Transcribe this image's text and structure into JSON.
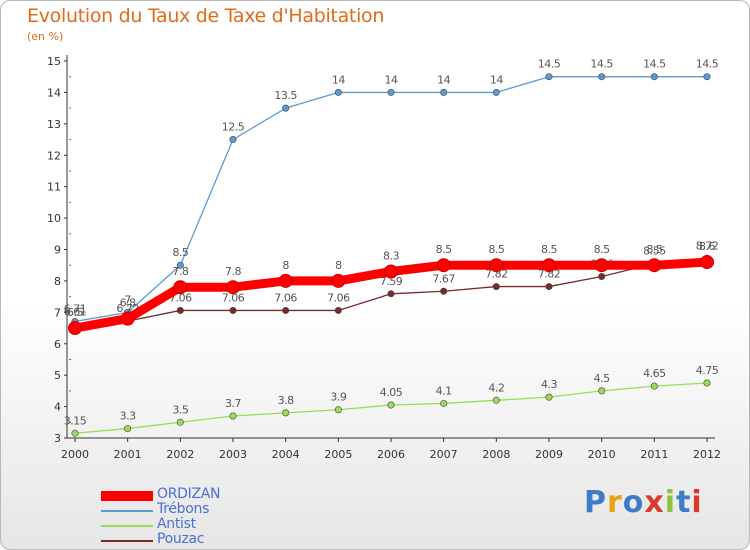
{
  "header": {
    "title": "Evolution du Taux de Taxe d'Habitation",
    "unit": "(en %)"
  },
  "chart_data": {
    "type": "line",
    "x": [
      2000,
      2001,
      2002,
      2003,
      2004,
      2005,
      2006,
      2007,
      2008,
      2009,
      2010,
      2011,
      2012
    ],
    "xlabel": "",
    "ylabel": "",
    "ylim": [
      3,
      15
    ],
    "yticks": [
      3,
      4,
      5,
      6,
      7,
      8,
      9,
      10,
      11,
      12,
      13,
      14,
      15
    ],
    "grid": false,
    "legend_position": "bottom-left",
    "series": [
      {
        "name": "Trébons",
        "color": "#5b9bd5",
        "values": [
          6.71,
          7,
          8.5,
          12.5,
          13.5,
          14,
          14,
          14,
          14,
          14.5,
          14.5,
          14.5,
          14.5
        ],
        "labels": [
          "6.71",
          "7",
          "8.5",
          "12.5",
          "13.5",
          "14",
          "14",
          "14",
          "14",
          "14.5",
          "14.5",
          "14.5",
          "14.5"
        ]
      },
      {
        "name": "Antist",
        "color": "#99dd55",
        "values": [
          3.15,
          3.3,
          3.5,
          3.7,
          3.8,
          3.9,
          4.05,
          4.1,
          4.2,
          4.3,
          4.5,
          4.65,
          4.75
        ],
        "labels": [
          "3.15",
          "3.3",
          "3.5",
          "3.7",
          "3.8",
          "3.9",
          "4.05",
          "4.1",
          "4.2",
          "4.3",
          "4.5",
          "4.65",
          "4.75"
        ]
      },
      {
        "name": "Pouzac",
        "color": "#7a2a2a",
        "values": [
          6.61,
          6.72,
          7.06,
          7.06,
          7.06,
          7.06,
          7.59,
          7.67,
          7.82,
          7.82,
          8.14,
          8.55,
          8.72
        ],
        "labels": [
          "6.61",
          "6.72",
          "7.06",
          "7.06",
          "7.06",
          "7.06",
          "7.59",
          "7.67",
          "7.82",
          "7.82",
          "8.14",
          "8.55",
          "8.72"
        ]
      },
      {
        "name": "ORDIZAN",
        "color": "#ff0000",
        "values": [
          6.5,
          6.8,
          7.8,
          7.8,
          8,
          8,
          8.3,
          8.5,
          8.5,
          8.5,
          8.5,
          8.5,
          8.6
        ],
        "labels": [
          "6.5",
          "6.8",
          "7.8",
          "7.8",
          "8",
          "8",
          "8.3",
          "8.5",
          "8.5",
          "8.5",
          "8.5",
          "8.5",
          "8.6"
        ]
      }
    ]
  },
  "legend": [
    {
      "name": "ORDIZAN",
      "color": "#ff0000"
    },
    {
      "name": "Trébons",
      "color": "#5b9bd5"
    },
    {
      "name": "Antist",
      "color": "#99dd55"
    },
    {
      "name": "Pouzac",
      "color": "#7a2a2a"
    }
  ],
  "logo": {
    "text": "Proxiti",
    "letter_colors": [
      "#3d7cc9",
      "#e8a21a",
      "#3d7cc9",
      "#d83a2b",
      "#8bc53f",
      "#3d7cc9",
      "#d83a2b"
    ]
  }
}
